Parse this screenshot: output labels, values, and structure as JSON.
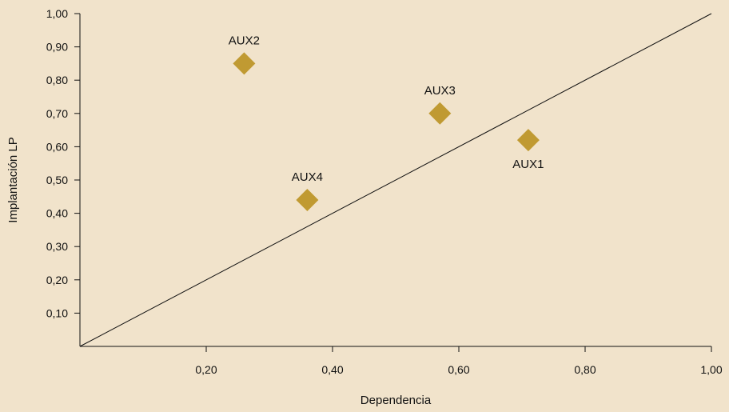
{
  "chart_data": {
    "type": "scatter",
    "title": "",
    "xlabel": "Dependencia",
    "ylabel": "Implantación LP",
    "xlim": [
      0,
      1
    ],
    "ylim": [
      0,
      1
    ],
    "x_ticks": [
      "0,20",
      "0,40",
      "0,60",
      "0,80",
      "1,00"
    ],
    "y_ticks": [
      "0,10",
      "0,20",
      "0,30",
      "0,40",
      "0,50",
      "0,60",
      "0,70",
      "0,80",
      "0,90",
      "1,00"
    ],
    "grid": false,
    "legend": "none",
    "marker": "diamond",
    "marker_color": "#c09a32",
    "reference_line": {
      "from": [
        0,
        0
      ],
      "to": [
        1,
        1
      ]
    },
    "points": [
      {
        "label": "AUX1",
        "x": 0.71,
        "y": 0.62,
        "label_position": "below"
      },
      {
        "label": "AUX2",
        "x": 0.26,
        "y": 0.85,
        "label_position": "above"
      },
      {
        "label": "AUX3",
        "x": 0.57,
        "y": 0.7,
        "label_position": "above"
      },
      {
        "label": "AUX4",
        "x": 0.36,
        "y": 0.44,
        "label_position": "above"
      }
    ]
  }
}
